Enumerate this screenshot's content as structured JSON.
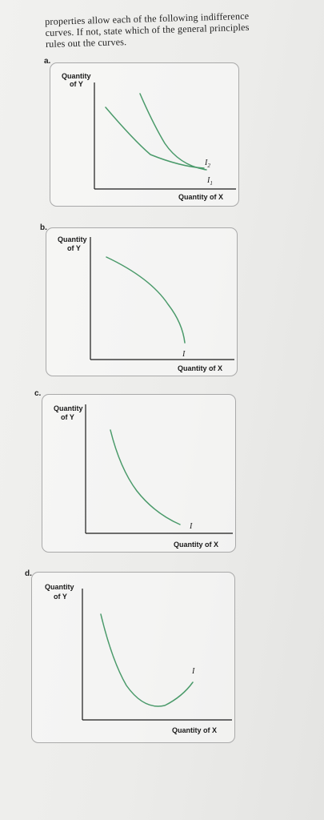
{
  "intro": {
    "line1": "properties allow each of the following indifference",
    "line2": "curves. If not, state which of the general principles",
    "line3": "rules out the curves."
  },
  "panels": [
    {
      "label": "a.",
      "y_label_1": "Quantity",
      "y_label_2": "of Y",
      "x_label": "Quantity of X",
      "curve_labels": [
        "I2",
        "I1"
      ]
    },
    {
      "label": "b.",
      "y_label_1": "Quantity",
      "y_label_2": "of Y",
      "x_label": "Quantity of X",
      "curve_labels": [
        "I"
      ]
    },
    {
      "label": "c.",
      "y_label_1": "Quantity",
      "y_label_2": "of Y",
      "x_label": "Quantity of X",
      "curve_labels": [
        "I"
      ]
    },
    {
      "label": "d.",
      "y_label_1": "Quantity",
      "y_label_2": "of Y",
      "x_label": "Quantity of X",
      "curve_labels": [
        "I"
      ]
    }
  ],
  "colors": {
    "curve": "#4a9a6a",
    "axis": "#1a1a1a",
    "panel_border": "#a9a9a9"
  }
}
